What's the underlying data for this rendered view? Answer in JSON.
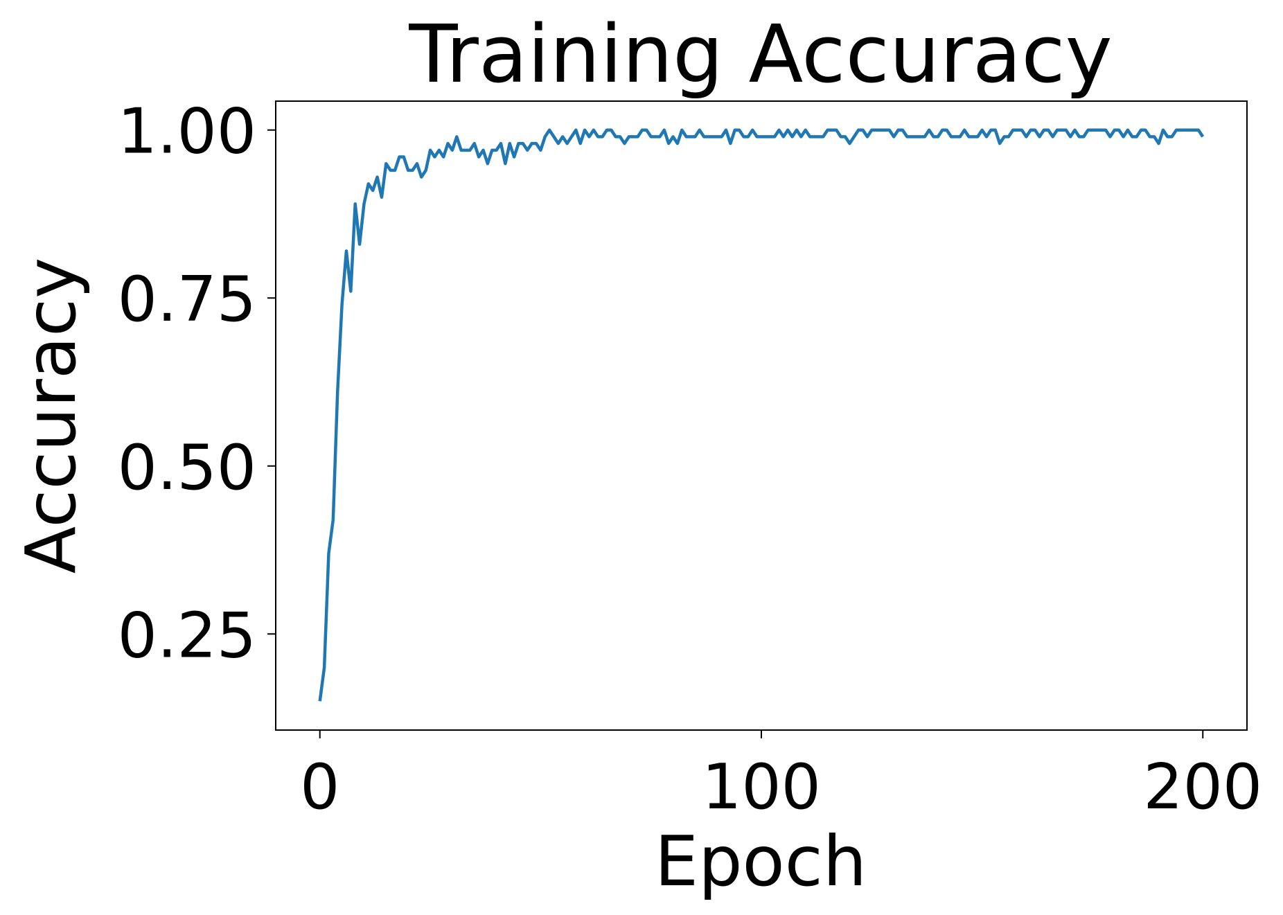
{
  "chart_data": {
    "type": "line",
    "title": "Training Accuracy",
    "x_label": "Epoch",
    "y_label": "Accuracy",
    "series": [
      {
        "color": "#1f77b4",
        "values": [
          0.15,
          0.2,
          0.37,
          0.42,
          0.61,
          0.74,
          0.82,
          0.76,
          0.89,
          0.83,
          0.89,
          0.92,
          0.91,
          0.93,
          0.9,
          0.95,
          0.94,
          0.94,
          0.96,
          0.96,
          0.94,
          0.94,
          0.95,
          0.93,
          0.94,
          0.97,
          0.96,
          0.97,
          0.96,
          0.98,
          0.97,
          0.99,
          0.97,
          0.97,
          0.97,
          0.98,
          0.96,
          0.97,
          0.95,
          0.97,
          0.97,
          0.98,
          0.95,
          0.98,
          0.96,
          0.98,
          0.98,
          0.97,
          0.98,
          0.98,
          0.97,
          0.99,
          1.0,
          0.99,
          0.98,
          0.99,
          0.98,
          0.99,
          1.0,
          0.98,
          1.0,
          0.99,
          1.0,
          0.99,
          0.99,
          1.0,
          1.0,
          0.99,
          0.99,
          0.98,
          0.99,
          0.99,
          0.99,
          1.0,
          1.0,
          0.99,
          0.99,
          0.99,
          1.0,
          0.98,
          0.99,
          0.98,
          1.0,
          0.99,
          0.99,
          0.99,
          1.0,
          0.99,
          0.99,
          0.99,
          0.99,
          0.99,
          1.0,
          0.98,
          1.0,
          1.0,
          0.99,
          0.99,
          1.0,
          0.99,
          0.99,
          0.99,
          0.99,
          0.99,
          1.0,
          0.99,
          1.0,
          0.99,
          1.0,
          0.99,
          1.0,
          0.99,
          0.99,
          0.99,
          0.99,
          1.0,
          1.0,
          1.0,
          0.99,
          0.99,
          0.98,
          0.99,
          1.0,
          1.0,
          0.99,
          1.0,
          1.0,
          1.0,
          1.0,
          1.0,
          0.99,
          1.0,
          1.0,
          0.99,
          0.99,
          0.99,
          0.99,
          0.99,
          1.0,
          0.99,
          0.99,
          1.0,
          1.0,
          0.99,
          0.99,
          0.99,
          1.0,
          0.99,
          0.99,
          0.99,
          1.0,
          0.99,
          1.0,
          1.0,
          0.98,
          0.99,
          0.99,
          1.0,
          1.0,
          1.0,
          0.99,
          1.0,
          1.0,
          0.99,
          1.0,
          1.0,
          0.99,
          1.0,
          1.0,
          1.0,
          0.99,
          1.0,
          0.99,
          0.99,
          1.0,
          1.0,
          1.0,
          1.0,
          1.0,
          0.99,
          1.0,
          1.0,
          0.99,
          1.0,
          0.99,
          0.99,
          1.0,
          1.0,
          0.99,
          0.99,
          0.98,
          1.0,
          0.99,
          0.99,
          1.0,
          1.0,
          1.0,
          1.0,
          1.0,
          1.0,
          0.99
        ]
      }
    ],
    "xlim": [
      -10,
      210
    ],
    "xticks": [
      0,
      100,
      200
    ],
    "ylim": [
      0.107,
      1.043
    ],
    "yticks": [
      {
        "value": 0.25,
        "label": "0.25"
      },
      {
        "value": 0.5,
        "label": "0.50"
      },
      {
        "value": 0.75,
        "label": "0.75"
      },
      {
        "value": 1,
        "label": "1.00"
      }
    ]
  }
}
